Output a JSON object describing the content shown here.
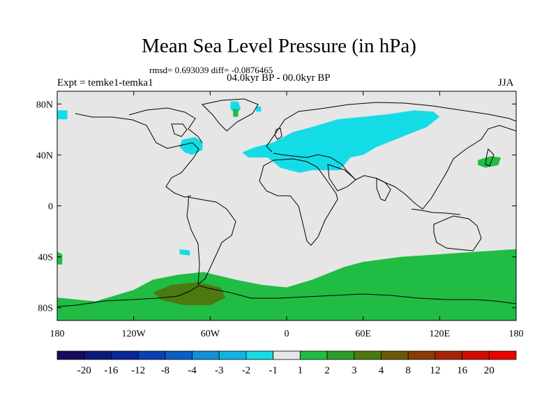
{
  "chart_data": {
    "type": "heatmap",
    "title": "Mean Sea Level Pressure (in hPa)",
    "stats_line": "rmsd= 0.693039 diff= -0.0876465",
    "left_label": "Expt = temke1-temka1",
    "center_label": "04.0kyr BP - 00.0kyr BP",
    "right_label": "JJA",
    "xlim": [
      -180,
      180
    ],
    "ylim": [
      -90,
      90
    ],
    "x_ticks": [
      {
        "value": -180,
        "label": "180"
      },
      {
        "value": -120,
        "label": "120W"
      },
      {
        "value": -60,
        "label": "60W"
      },
      {
        "value": 0,
        "label": "0"
      },
      {
        "value": 60,
        "label": "60E"
      },
      {
        "value": 120,
        "label": "120E"
      },
      {
        "value": 180,
        "label": "180"
      }
    ],
    "y_ticks": [
      {
        "value": 80,
        "label": "80N"
      },
      {
        "value": 40,
        "label": "40N"
      },
      {
        "value": 0,
        "label": "0"
      },
      {
        "value": -40,
        "label": "40S"
      },
      {
        "value": -80,
        "label": "80S"
      }
    ],
    "colorbar": {
      "levels": [
        "-20",
        "-16",
        "-12",
        "-8",
        "-4",
        "-3",
        "-2",
        "-1",
        "1",
        "2",
        "3",
        "4",
        "8",
        "12",
        "16",
        "20"
      ],
      "colors": [
        "#1a0a5e",
        "#0a1a7a",
        "#08289a",
        "#0a40b4",
        "#0a5ec8",
        "#1090d8",
        "#10b4e0",
        "#14dce6",
        "#e6e6e6",
        "#20bc44",
        "#2c9c28",
        "#4c7a10",
        "#6c5a08",
        "#8a3c08",
        "#a82406",
        "#d20e04",
        "#ee0000"
      ]
    },
    "regions": [
      {
        "name": "north-atlantic-eurasia-low",
        "class": "-2 to -1",
        "polygon": [
          [
            -35,
            42
          ],
          [
            -25,
            46
          ],
          [
            -10,
            50
          ],
          [
            5,
            58
          ],
          [
            20,
            62
          ],
          [
            40,
            68
          ],
          [
            60,
            70
          ],
          [
            80,
            72
          ],
          [
            100,
            75
          ],
          [
            115,
            74
          ],
          [
            120,
            70
          ],
          [
            110,
            62
          ],
          [
            95,
            56
          ],
          [
            85,
            52
          ],
          [
            70,
            46
          ],
          [
            60,
            40
          ],
          [
            50,
            38
          ],
          [
            45,
            32
          ],
          [
            40,
            28
          ],
          [
            20,
            28
          ],
          [
            10,
            26
          ],
          [
            -5,
            30
          ],
          [
            -15,
            38
          ],
          [
            -30,
            38
          ]
        ]
      },
      {
        "name": "mediterranean-low",
        "class": "-2 to -1",
        "polygon": [
          [
            -10,
            44
          ],
          [
            5,
            45
          ],
          [
            20,
            44
          ],
          [
            35,
            40
          ],
          [
            45,
            34
          ],
          [
            42,
            28
          ],
          [
            25,
            28
          ],
          [
            10,
            30
          ],
          [
            -2,
            32
          ],
          [
            -8,
            38
          ]
        ]
      },
      {
        "name": "north-america-low",
        "class": "-2 to -1",
        "polygon": [
          [
            -82,
            52
          ],
          [
            -72,
            54
          ],
          [
            -66,
            50
          ],
          [
            -66,
            44
          ],
          [
            -74,
            40
          ],
          [
            -80,
            42
          ],
          [
            -84,
            46
          ]
        ]
      },
      {
        "name": "greenland-low-1",
        "class": "-2 to -1",
        "polygon": [
          [
            -44,
            82
          ],
          [
            -38,
            82
          ],
          [
            -36,
            76
          ],
          [
            -40,
            72
          ],
          [
            -44,
            76
          ]
        ]
      },
      {
        "name": "greenland-low-2",
        "class": "-2 to -1",
        "polygon": [
          [
            -24,
            78
          ],
          [
            -20,
            78
          ],
          [
            -20,
            74
          ],
          [
            -24,
            74
          ]
        ]
      },
      {
        "name": "alaska-low",
        "class": "-2 to -1",
        "polygon": [
          [
            -180,
            75
          ],
          [
            -172,
            75
          ],
          [
            -172,
            68
          ],
          [
            -180,
            68
          ]
        ]
      },
      {
        "name": "south-atlantic-low",
        "class": "-2 to -1",
        "polygon": [
          [
            -84,
            -34
          ],
          [
            -76,
            -35
          ],
          [
            -76,
            -39
          ],
          [
            -84,
            -38
          ]
        ]
      },
      {
        "name": "north-pacific-high",
        "class": "1 to 2",
        "polygon": [
          [
            150,
            36
          ],
          [
            160,
            39
          ],
          [
            168,
            38
          ],
          [
            166,
            32
          ],
          [
            156,
            30
          ],
          [
            150,
            32
          ]
        ]
      },
      {
        "name": "greenland-high",
        "class": "1 to 2",
        "polygon": [
          [
            -42,
            76
          ],
          [
            -38,
            76
          ],
          [
            -38,
            70
          ],
          [
            -42,
            70
          ]
        ]
      },
      {
        "name": "southern-ocean-high",
        "class": "1 to 2",
        "polygon": [
          [
            -180,
            -72
          ],
          [
            -150,
            -75
          ],
          [
            -120,
            -66
          ],
          [
            -105,
            -58
          ],
          [
            -85,
            -54
          ],
          [
            -65,
            -52
          ],
          [
            -40,
            -58
          ],
          [
            -20,
            -62
          ],
          [
            0,
            -64
          ],
          [
            20,
            -58
          ],
          [
            45,
            -48
          ],
          [
            60,
            -44
          ],
          [
            90,
            -40
          ],
          [
            120,
            -38
          ],
          [
            150,
            -36
          ],
          [
            180,
            -34
          ],
          [
            180,
            -90
          ],
          [
            -180,
            -90
          ]
        ]
      },
      {
        "name": "south-america-high",
        "class": "1 to 2",
        "polygon": [
          [
            -180,
            -36
          ],
          [
            -176,
            -38
          ],
          [
            -176,
            -46
          ],
          [
            -180,
            -46
          ]
        ]
      },
      {
        "name": "amundsen-sea-high",
        "class": "3 to 4",
        "polygon": [
          [
            -105,
            -68
          ],
          [
            -90,
            -62
          ],
          [
            -70,
            -60
          ],
          [
            -52,
            -64
          ],
          [
            -48,
            -72
          ],
          [
            -60,
            -78
          ],
          [
            -80,
            -78
          ],
          [
            -98,
            -74
          ]
        ]
      }
    ]
  }
}
